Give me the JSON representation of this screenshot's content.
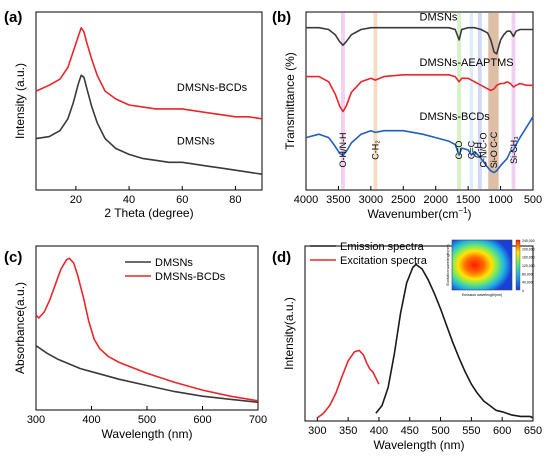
{
  "chart_data": [
    {
      "panel": "(a)",
      "type": "line",
      "xlabel": "2 Theta (degree)",
      "ylabel": "Intensity (a.u.)",
      "xlim": [
        5,
        90
      ],
      "xticks": [
        20,
        40,
        60,
        80
      ],
      "series": [
        {
          "name": "DMSNs-BCDs",
          "color": "#e8262b",
          "x": [
            5,
            10,
            14,
            17,
            19,
            21,
            22,
            23,
            24,
            26,
            28,
            31,
            35,
            40,
            45,
            50,
            55,
            60,
            65,
            70,
            75,
            80,
            85,
            90
          ],
          "y": [
            0.6,
            0.63,
            0.66,
            0.72,
            0.8,
            0.88,
            0.92,
            0.9,
            0.85,
            0.76,
            0.68,
            0.6,
            0.56,
            0.53,
            0.52,
            0.51,
            0.51,
            0.51,
            0.5,
            0.49,
            0.48,
            0.47,
            0.47,
            0.46
          ]
        },
        {
          "name": "DMSNs",
          "color": "#3a3a3a",
          "x": [
            5,
            10,
            14,
            17,
            19,
            21,
            22,
            23,
            24,
            26,
            28,
            31,
            35,
            40,
            45,
            50,
            55,
            60,
            65,
            70,
            75,
            80,
            85,
            90
          ],
          "y": [
            0.36,
            0.37,
            0.4,
            0.46,
            0.54,
            0.64,
            0.68,
            0.67,
            0.62,
            0.52,
            0.44,
            0.36,
            0.31,
            0.28,
            0.26,
            0.25,
            0.24,
            0.24,
            0.23,
            0.22,
            0.21,
            0.2,
            0.19,
            0.18
          ]
        }
      ],
      "labels": [
        {
          "text": "DMSNs-BCDs",
          "x": 58,
          "y": 0.6
        },
        {
          "text": "DMSNs",
          "x": 58,
          "y": 0.33
        }
      ]
    },
    {
      "panel": "(b)",
      "type": "line",
      "xlabel": "Wavenumber(cm",
      "xlabel_sup": "−1",
      "xlabel_end": ")",
      "ylabel": "Transmittance (%)",
      "xlim": [
        4000,
        500
      ],
      "xticks": [
        4000,
        3500,
        3000,
        2500,
        2000,
        1500,
        1000,
        500
      ],
      "bands": [
        {
          "center": 3430,
          "width": 60,
          "color": "#f2c7ee"
        },
        {
          "center": 2930,
          "width": 60,
          "color": "#f7d6b7"
        },
        {
          "center": 1640,
          "width": 60,
          "color": "#cdf0b8"
        },
        {
          "center": 1450,
          "width": 50,
          "color": "#d6e9f7"
        },
        {
          "center": 1320,
          "width": 60,
          "color": "#c7d2f2"
        },
        {
          "center": 1110,
          "width": 160,
          "color": "#d9b398"
        },
        {
          "center": 800,
          "width": 60,
          "color": "#ecc8f0"
        }
      ],
      "band_labels": [
        {
          "text": "O-H/N-H",
          "x": 3430
        },
        {
          "text": "C-H₂",
          "x": 2930
        },
        {
          "text": "C=O",
          "x": 1640
        },
        {
          "text": "C=C",
          "x": 1450
        },
        {
          "text": "C-H",
          "x": 1350
        },
        {
          "text": "C-N/C-O",
          "x": 1260
        },
        {
          "text": "Si-O C-C",
          "x": 1100
        },
        {
          "text": "Si-CH₃",
          "x": 790
        }
      ],
      "series": [
        {
          "name": "DMSNs",
          "color": "#3a3a3a",
          "x": [
            4000,
            3800,
            3650,
            3550,
            3480,
            3430,
            3380,
            3300,
            3150,
            3000,
            2800,
            2500,
            2200,
            2000,
            1800,
            1700,
            1640,
            1600,
            1500,
            1400,
            1300,
            1200,
            1150,
            1100,
            1060,
            1000,
            950,
            900,
            850,
            800,
            760,
            700,
            600,
            500
          ],
          "y": [
            0.93,
            0.93,
            0.92,
            0.89,
            0.85,
            0.83,
            0.85,
            0.89,
            0.92,
            0.93,
            0.93,
            0.93,
            0.93,
            0.93,
            0.93,
            0.92,
            0.86,
            0.92,
            0.93,
            0.93,
            0.92,
            0.9,
            0.86,
            0.79,
            0.78,
            0.86,
            0.89,
            0.91,
            0.91,
            0.88,
            0.91,
            0.92,
            0.92,
            0.92
          ]
        },
        {
          "name": "DMSNs-AEAPTMS",
          "color": "#e8262b",
          "x": [
            4000,
            3800,
            3650,
            3550,
            3480,
            3430,
            3380,
            3300,
            3150,
            3000,
            2930,
            2800,
            2500,
            2200,
            2000,
            1800,
            1700,
            1640,
            1600,
            1500,
            1400,
            1300,
            1200,
            1150,
            1100,
            1060,
            1000,
            950,
            900,
            850,
            800,
            760,
            700,
            600,
            500
          ],
          "y": [
            0.65,
            0.65,
            0.62,
            0.55,
            0.48,
            0.45,
            0.48,
            0.56,
            0.62,
            0.64,
            0.63,
            0.65,
            0.66,
            0.66,
            0.66,
            0.66,
            0.65,
            0.62,
            0.64,
            0.64,
            0.62,
            0.6,
            0.58,
            0.57,
            0.58,
            0.6,
            0.61,
            0.61,
            0.62,
            0.61,
            0.59,
            0.6,
            0.61,
            0.6,
            0.6
          ]
        },
        {
          "name": "DMSNs-BCDs",
          "color": "#1f5fbf",
          "x": [
            4000,
            3800,
            3650,
            3550,
            3480,
            3430,
            3380,
            3300,
            3150,
            3000,
            2930,
            2800,
            2500,
            2200,
            2000,
            1800,
            1700,
            1640,
            1600,
            1500,
            1450,
            1400,
            1300,
            1200,
            1150,
            1100,
            1060,
            1000,
            950,
            900,
            850,
            800,
            760,
            700,
            600,
            500
          ],
          "y": [
            0.3,
            0.32,
            0.3,
            0.25,
            0.21,
            0.2,
            0.22,
            0.27,
            0.32,
            0.34,
            0.33,
            0.34,
            0.34,
            0.32,
            0.3,
            0.28,
            0.26,
            0.2,
            0.24,
            0.23,
            0.2,
            0.22,
            0.18,
            0.13,
            0.11,
            0.1,
            0.11,
            0.14,
            0.16,
            0.18,
            0.22,
            0.23,
            0.26,
            0.3,
            0.36,
            0.42
          ]
        }
      ],
      "labels": [
        {
          "text": "DMSNs",
          "x": 2250,
          "y": 0.97
        },
        {
          "text": "DMSNs-AEAPTMS",
          "x": 2250,
          "y": 0.71
        },
        {
          "text": "DMSNs-BCDs",
          "x": 2250,
          "y": 0.4
        }
      ]
    },
    {
      "panel": "(c)",
      "type": "line",
      "xlabel": "Wavelength (nm)",
      "ylabel": "Absorbance(a.u.)",
      "xlim": [
        300,
        700
      ],
      "xticks": [
        300,
        400,
        500,
        600,
        700
      ],
      "legend": [
        "DMSNs",
        "DMSNs-BCDs"
      ],
      "series": [
        {
          "name": "DMSNs",
          "color": "#3a3a3a",
          "x": [
            300,
            320,
            340,
            360,
            380,
            400,
            420,
            450,
            500,
            550,
            600,
            650,
            700
          ],
          "y": [
            0.42,
            0.37,
            0.33,
            0.3,
            0.27,
            0.25,
            0.23,
            0.2,
            0.16,
            0.12,
            0.09,
            0.07,
            0.05
          ]
        },
        {
          "name": "DMSNs-BCDs",
          "color": "#e8262b",
          "x": [
            300,
            305,
            315,
            325,
            335,
            345,
            355,
            360,
            368,
            375,
            385,
            395,
            405,
            415,
            430,
            450,
            500,
            550,
            600,
            650,
            700
          ],
          "y": [
            0.62,
            0.6,
            0.64,
            0.72,
            0.82,
            0.92,
            0.98,
            0.99,
            0.96,
            0.88,
            0.74,
            0.58,
            0.46,
            0.4,
            0.35,
            0.31,
            0.24,
            0.18,
            0.13,
            0.09,
            0.06
          ]
        }
      ]
    },
    {
      "panel": "(d)",
      "type": "line",
      "xlabel": "Wavelength (nm)",
      "ylabel": "Intensity(a.u.)",
      "xlim": [
        280,
        650
      ],
      "xticks": [
        300,
        350,
        400,
        450,
        500,
        550,
        600,
        650
      ],
      "legend": [
        "Emission spectra",
        "Excitation spectra"
      ],
      "series": [
        {
          "name": "Emission spectra",
          "color": "#1a1a1a",
          "x": [
            395,
            405,
            415,
            425,
            435,
            445,
            455,
            460,
            470,
            480,
            490,
            500,
            510,
            520,
            530,
            540,
            550,
            560,
            570,
            580,
            590,
            600,
            615,
            630,
            645,
            650
          ],
          "y": [
            0.03,
            0.08,
            0.2,
            0.42,
            0.68,
            0.88,
            0.98,
            1.0,
            0.97,
            0.9,
            0.81,
            0.71,
            0.6,
            0.49,
            0.39,
            0.3,
            0.22,
            0.16,
            0.11,
            0.08,
            0.05,
            0.04,
            0.02,
            0.01,
            0.01,
            0.0
          ]
        },
        {
          "name": "Excitation spectra",
          "color": "#e8262b",
          "x": [
            300,
            310,
            320,
            330,
            340,
            350,
            360,
            368,
            375,
            380,
            385,
            390,
            395,
            400
          ],
          "y": [
            0.0,
            0.03,
            0.08,
            0.16,
            0.27,
            0.37,
            0.43,
            0.44,
            0.41,
            0.36,
            0.32,
            0.3,
            0.26,
            0.22
          ]
        }
      ],
      "inset": {
        "type": "heatmap",
        "xlabel": "Emission wavelength(nm)",
        "ylabel": "Excitation wavelength(nm)",
        "colorbar_ticks": [
          "240,000",
          "200,000",
          "160,000",
          "120,000",
          "80,000",
          "40,000",
          "0"
        ]
      }
    }
  ]
}
